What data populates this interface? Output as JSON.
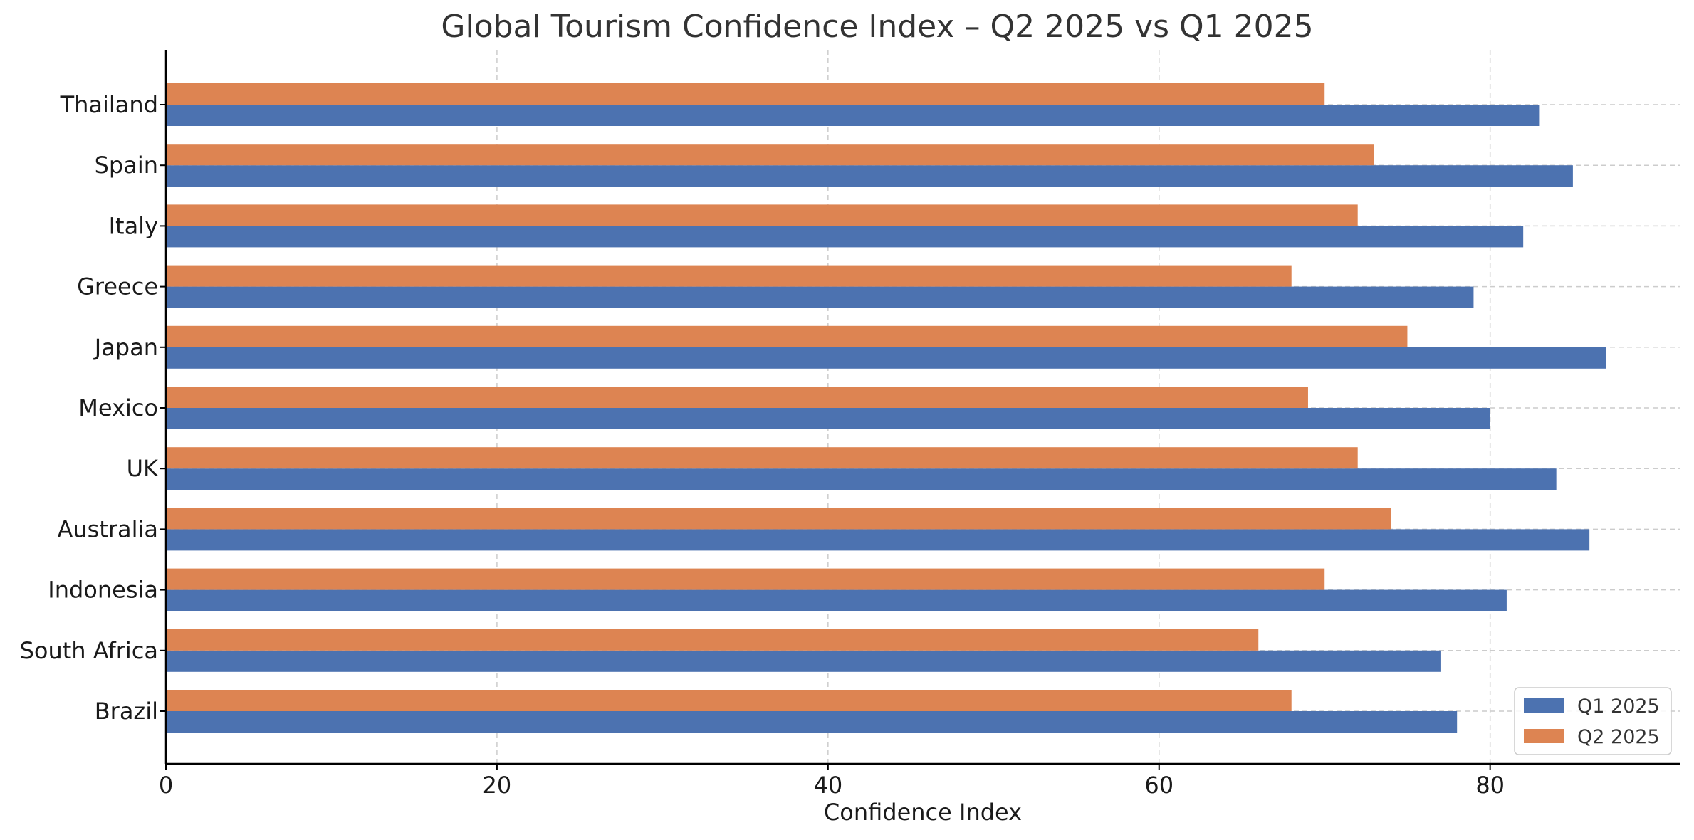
{
  "chart_data": {
    "type": "bar",
    "orientation": "horizontal",
    "title": "Global Tourism Confidence Index – Q2 2025 vs Q1 2025",
    "xlabel": "Confidence Index",
    "ylabel": "",
    "xlim": [
      0,
      91.5
    ],
    "xticks": [
      0,
      20,
      40,
      60,
      80
    ],
    "grid": true,
    "legend_position": "lower-right",
    "categories": [
      "Thailand",
      "Spain",
      "Italy",
      "Greece",
      "Japan",
      "Mexico",
      "UK",
      "Australia",
      "Indonesia",
      "South Africa",
      "Brazil"
    ],
    "series": [
      {
        "name": "Q1 2025",
        "color": "#4c72b0",
        "values": [
          83,
          85,
          82,
          79,
          87,
          80,
          84,
          86,
          81,
          77,
          78
        ]
      },
      {
        "name": "Q2 2025",
        "color": "#dd8452",
        "values": [
          70,
          73,
          72,
          68,
          75,
          69,
          72,
          74,
          70,
          66,
          68
        ]
      }
    ]
  }
}
